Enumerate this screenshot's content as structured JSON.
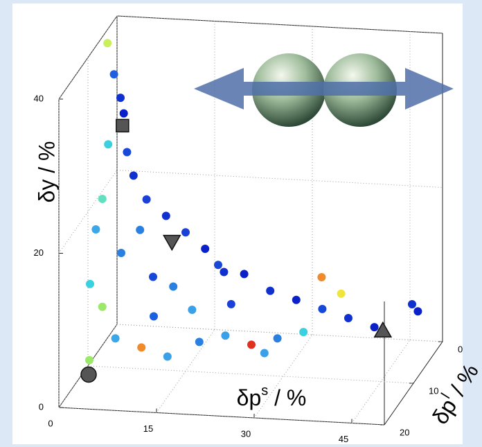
{
  "chart_data": {
    "type": "scatter3d",
    "xlabel": {
      "base": "δp",
      "sup": "s",
      "rest": " / %"
    },
    "ylabel": {
      "base": "δp",
      "sup": "l",
      "rest": " / %"
    },
    "zlabel": "δy / %",
    "xlim": [
      0,
      50
    ],
    "ylim": [
      0,
      20
    ],
    "zlim": [
      0,
      40
    ],
    "xticks": [
      0,
      15,
      30,
      45
    ],
    "yticks": [
      0,
      10,
      20
    ],
    "zticks": [
      0,
      20,
      40
    ],
    "grid": true,
    "x": [
      3,
      4,
      5,
      5.5,
      4,
      6,
      7,
      4,
      3,
      9,
      12,
      15,
      8,
      18,
      20,
      24,
      14,
      28,
      32,
      36,
      40,
      44,
      38,
      34,
      30,
      26,
      22,
      18,
      14,
      10,
      6,
      4,
      2,
      10,
      16,
      22,
      28,
      48,
      48,
      3,
      6,
      11,
      20,
      35
    ],
    "y": [
      10,
      10,
      10,
      10,
      12,
      10,
      10,
      14,
      14,
      10,
      10,
      10,
      10,
      10,
      10,
      10,
      12,
      10,
      10,
      10,
      10,
      10,
      8,
      12,
      12,
      12,
      12,
      12,
      14,
      14,
      14,
      14,
      14,
      10,
      10,
      10,
      12,
      6,
      4,
      16,
      12,
      12,
      8,
      8
    ],
    "z": [
      42,
      38,
      35,
      33,
      30,
      28,
      25,
      24,
      20,
      22,
      20,
      18,
      18,
      16,
      14,
      13,
      12,
      11,
      10,
      9,
      8,
      7,
      10,
      7,
      6,
      5,
      6,
      5,
      4,
      5,
      6,
      10,
      3,
      12,
      8,
      9,
      4,
      8,
      6,
      14,
      16,
      8,
      12,
      12
    ],
    "colors": [
      "#c8f05a",
      "#1f5fe0",
      "#1030d0",
      "#0a20c8",
      "#3ad0e0",
      "#1848d8",
      "#1030d0",
      "#60e0c0",
      "#3aa8e8",
      "#1a40d8",
      "#1030d0",
      "#1a40d8",
      "#2a80e0",
      "#0a20c8",
      "#1848d8",
      "#0a20c8",
      "#2a80e0",
      "#1030d0",
      "#0a20c8",
      "#1848d8",
      "#1030d0",
      "#0a20c8",
      "#f0e63a",
      "#3ad0e0",
      "#2a80e0",
      "#e03020",
      "#3aa0e8",
      "#2a80e0",
      "#3aa0e8",
      "#f08a2a",
      "#3aa8e8",
      "#9be86a",
      "#9be86a",
      "#1848d8",
      "#3aa0e8",
      "#1a40d8",
      "#3aa0e8",
      "#1030d0",
      "#0a20c8",
      "#3ad0e0",
      "#2a80e0",
      "#1a60e0",
      "#1030d0",
      "#f08a2a"
    ],
    "markers": [
      {
        "shape": "circle",
        "x": 1,
        "y": 12,
        "z": 0
      },
      {
        "shape": "square",
        "x": 5.3,
        "y": 10,
        "z": 31.4
      },
      {
        "shape": "triangle-down",
        "x": 12.9,
        "y": 10,
        "z": 16.7
      },
      {
        "shape": "triangle-up",
        "x": 45.3,
        "y": 10,
        "z": 6.6
      }
    ]
  }
}
